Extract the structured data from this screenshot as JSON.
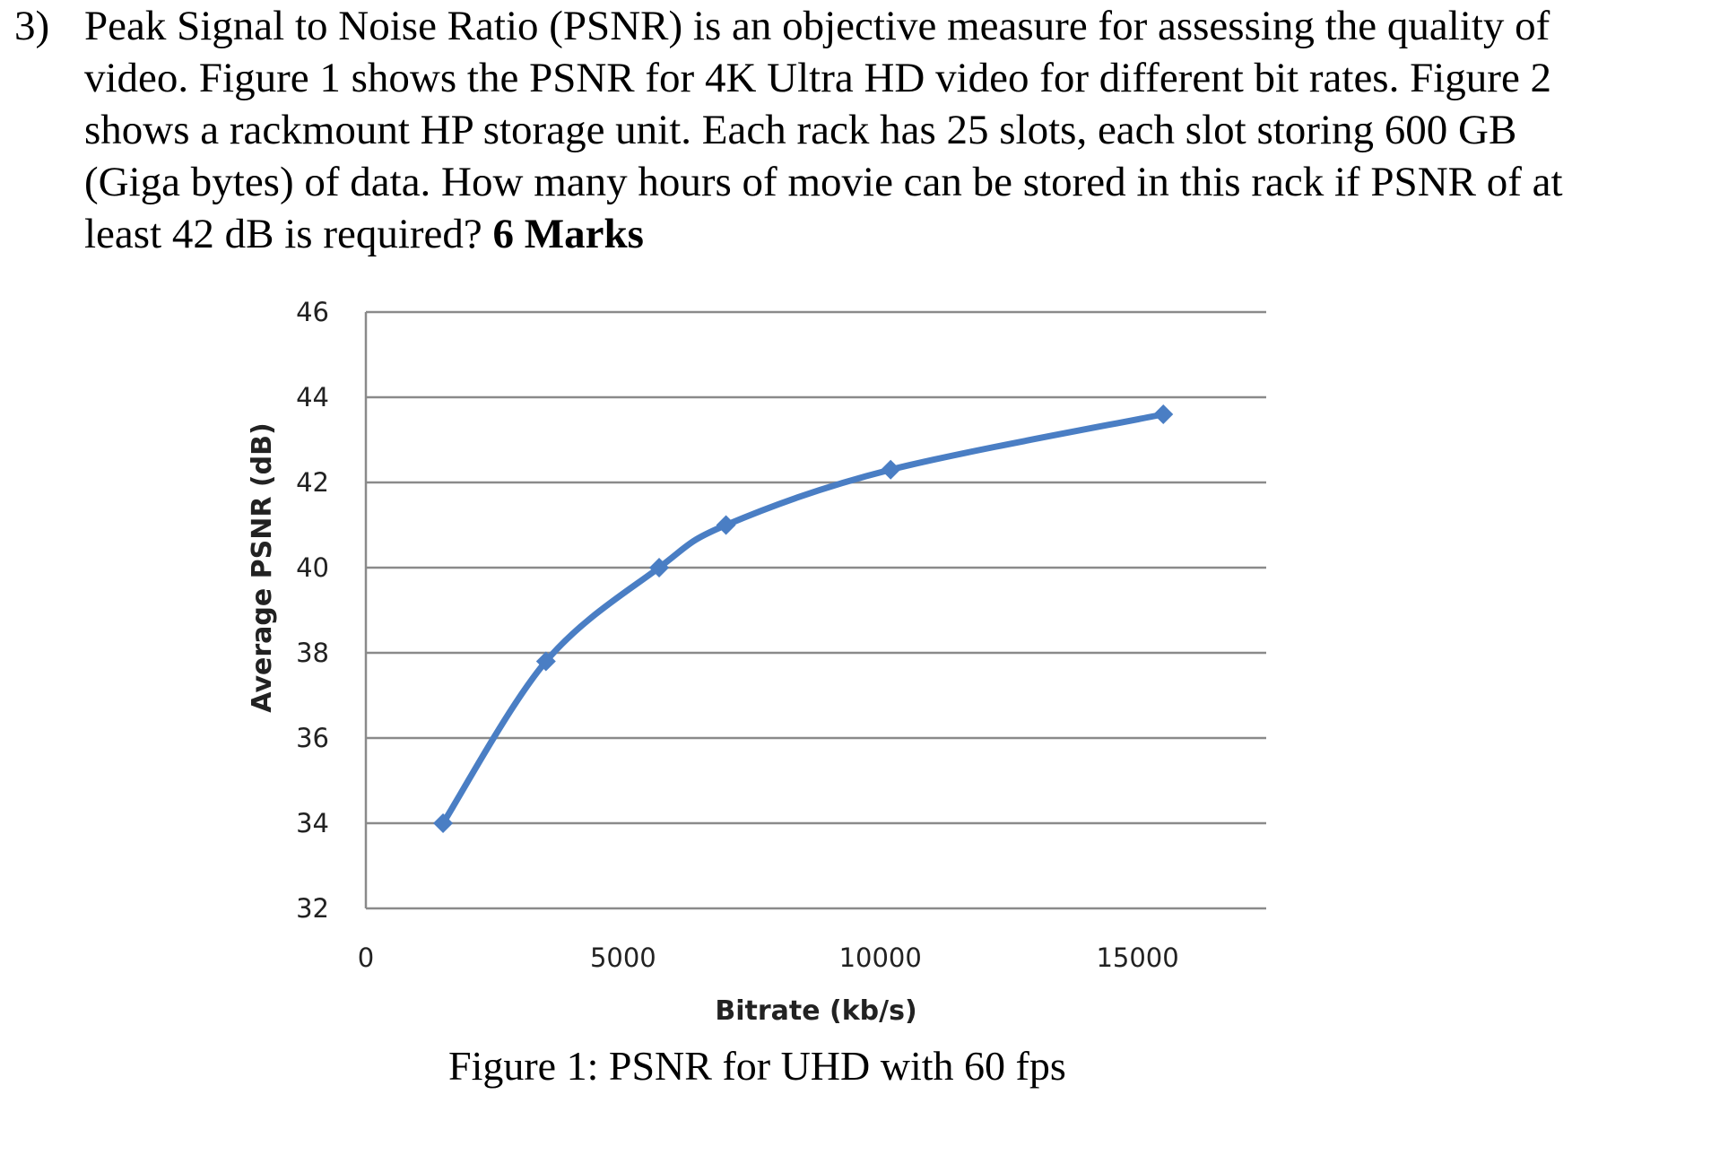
{
  "question": {
    "number": "3)",
    "text": "Peak Signal to Noise Ratio (PSNR) is an objective measure for assessing the quality of video. Figure 1 shows the PSNR for 4K Ultra HD video for different bit rates. Figure 2 shows a rackmount HP storage unit. Each rack has 25 slots, each slot storing 600 GB (Giga bytes) of data. How many hours of movie can be stored in this rack if PSNR of at least 42 dB is required? ",
    "marks": "6 Marks"
  },
  "caption": "Figure 1: PSNR for UHD with 60 fps",
  "chart_data": {
    "type": "line",
    "title": "",
    "xlabel": "Bitrate (kb/s)",
    "ylabel": "Average PSNR (dB)",
    "xlim": [
      0,
      17500
    ],
    "ylim": [
      32,
      46
    ],
    "x_ticks": [
      0,
      5000,
      10000,
      15000
    ],
    "y_ticks": [
      32,
      34,
      36,
      38,
      40,
      42,
      44,
      46
    ],
    "grid": true,
    "series": [
      {
        "color": "#4a7ec4",
        "x": [
          1500,
          3500,
          5700,
          7000,
          10200,
          15500
        ],
        "values": [
          34.0,
          37.8,
          40.0,
          41.0,
          42.3,
          43.6
        ]
      }
    ]
  }
}
